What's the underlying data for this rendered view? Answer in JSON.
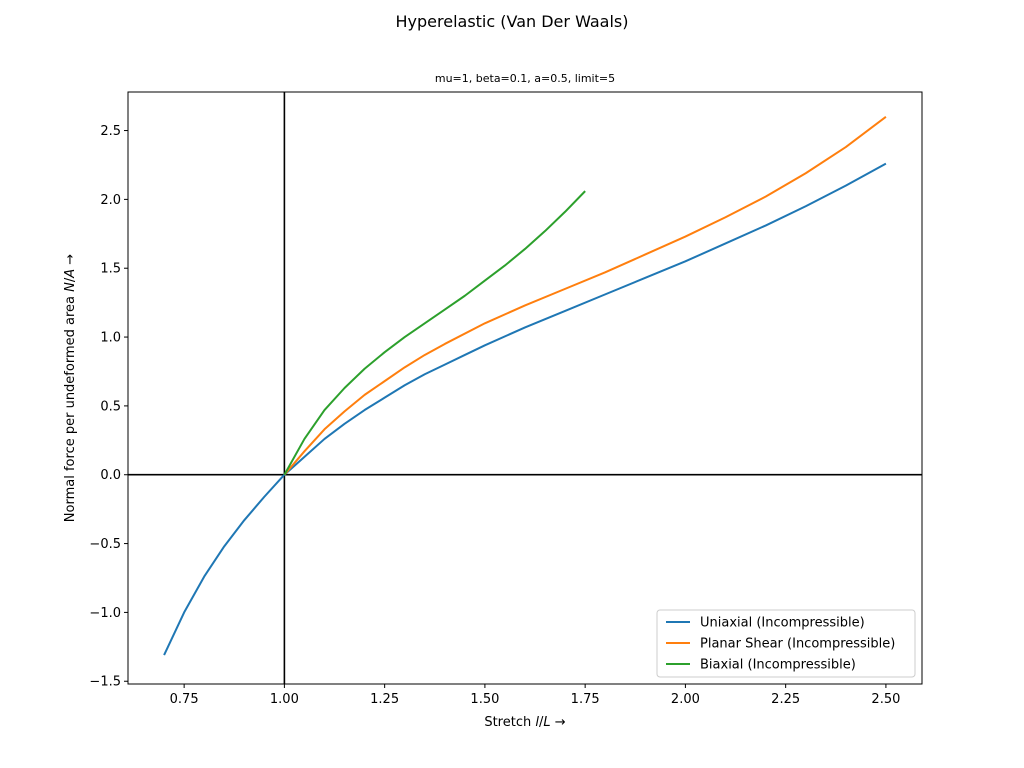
{
  "figure": {
    "suptitle": "Hyperelastic (Van Der Waals)",
    "subtitle": "mu=1, beta=0.1, a=0.5, limit=5"
  },
  "chart_data": {
    "type": "line",
    "xlabel": "Stretch l/L  →",
    "ylabel": "Normal force per undeformed area N/A  →",
    "xlim": [
      0.61,
      2.59
    ],
    "ylim": [
      -1.52,
      2.78
    ],
    "xticks": [
      0.75,
      1.0,
      1.25,
      1.5,
      1.75,
      2.0,
      2.25,
      2.5
    ],
    "xtick_labels": [
      "0.75",
      "1.00",
      "1.25",
      "1.50",
      "1.75",
      "2.00",
      "2.25",
      "2.50"
    ],
    "yticks": [
      -1.5,
      -1.0,
      -0.5,
      0.0,
      0.5,
      1.0,
      1.5,
      2.0,
      2.5
    ],
    "ytick_labels": [
      "−1.5",
      "−1.0",
      "−0.5",
      "0.0",
      "0.5",
      "1.0",
      "1.5",
      "2.0",
      "2.5"
    ],
    "reference_lines": {
      "x": 1.0,
      "y": 0.0,
      "color": "#000000"
    },
    "grid": false,
    "legend_position": "lower-right",
    "series": [
      {
        "name": "Uniaxial (Incompressible)",
        "color": "#1f77b4",
        "x": [
          0.7,
          0.75,
          0.8,
          0.85,
          0.9,
          0.95,
          1.0,
          1.05,
          1.1,
          1.15,
          1.2,
          1.25,
          1.3,
          1.35,
          1.4,
          1.45,
          1.5,
          1.6,
          1.7,
          1.8,
          1.9,
          2.0,
          2.1,
          2.2,
          2.3,
          2.4,
          2.5
        ],
        "y": [
          -1.31,
          -1.0,
          -0.74,
          -0.52,
          -0.33,
          -0.16,
          0.0,
          0.13,
          0.26,
          0.37,
          0.47,
          0.56,
          0.65,
          0.73,
          0.8,
          0.87,
          0.94,
          1.07,
          1.19,
          1.31,
          1.43,
          1.55,
          1.68,
          1.81,
          1.95,
          2.1,
          2.26
        ]
      },
      {
        "name": "Planar Shear (Incompressible)",
        "color": "#ff7f0e",
        "x": [
          1.0,
          1.05,
          1.1,
          1.15,
          1.2,
          1.25,
          1.3,
          1.35,
          1.4,
          1.5,
          1.6,
          1.7,
          1.8,
          1.9,
          2.0,
          2.1,
          2.2,
          2.3,
          2.4,
          2.5
        ],
        "y": [
          0.0,
          0.17,
          0.33,
          0.46,
          0.58,
          0.68,
          0.78,
          0.87,
          0.95,
          1.1,
          1.23,
          1.35,
          1.47,
          1.6,
          1.73,
          1.87,
          2.02,
          2.19,
          2.38,
          2.6
        ]
      },
      {
        "name": "Biaxial (Incompressible)",
        "color": "#2ca02c",
        "x": [
          1.0,
          1.05,
          1.1,
          1.15,
          1.2,
          1.25,
          1.3,
          1.35,
          1.4,
          1.45,
          1.5,
          1.55,
          1.6,
          1.65,
          1.7,
          1.75
        ],
        "y": [
          0.0,
          0.26,
          0.47,
          0.63,
          0.77,
          0.89,
          1.0,
          1.1,
          1.2,
          1.3,
          1.41,
          1.52,
          1.64,
          1.77,
          1.91,
          2.06
        ]
      }
    ]
  }
}
